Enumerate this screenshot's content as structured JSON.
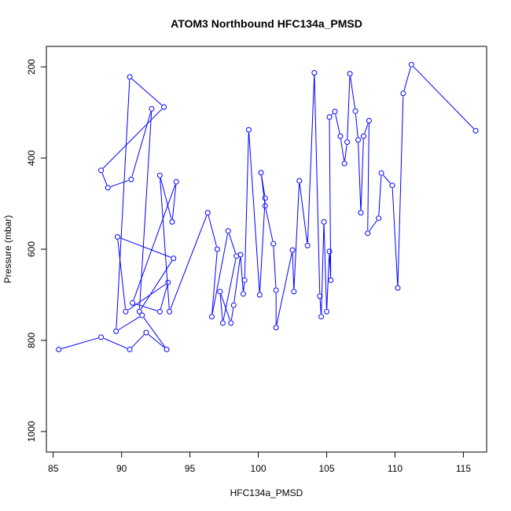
{
  "chart_data": {
    "type": "line",
    "title": "ATOM3 Northbound HFC134a_PMSD",
    "xlabel": "HFC134a_PMSD",
    "ylabel": "Pressure (mbar)",
    "xlim": [
      84.5,
      116.7
    ],
    "ylim": [
      1045,
      155
    ],
    "y_reversed": true,
    "x_ticks": [
      85,
      90,
      95,
      100,
      105,
      110,
      115
    ],
    "y_ticks": [
      200,
      400,
      600,
      800,
      1000
    ],
    "grid": false,
    "legend": "none",
    "series": [
      {
        "color": "#0000ff",
        "marker": "open-circle",
        "x": [
          85.4,
          88.5,
          90.6,
          91.8,
          93.3,
          91.5,
          89.6,
          90.6,
          93.1,
          88.5,
          89.0,
          90.7,
          92.2,
          91.3,
          93.8,
          89.7,
          90.3,
          93.4,
          92.8,
          90.8,
          94.0,
          93.7,
          92.8,
          93.5,
          96.3,
          97.0,
          96.6,
          97.8,
          98.4,
          97.4,
          97.2,
          98.0,
          98.2,
          98.7,
          98.9,
          99.0,
          99.3,
          100.1,
          100.5,
          100.2,
          100.5,
          101.1,
          101.3,
          101.3,
          102.5,
          102.6,
          103.0,
          103.6,
          104.1,
          104.5,
          104.6,
          104.8,
          105.0,
          105.2,
          105.3,
          105.2,
          105.6,
          106.0,
          106.3,
          106.5,
          106.7,
          107.1,
          107.3,
          107.5,
          107.7,
          108.1,
          108.0,
          108.8,
          109.0,
          109.8,
          110.2,
          110.6,
          111.2,
          115.9
        ],
        "y": [
          820,
          793,
          820,
          783,
          820,
          745,
          780,
          222,
          288,
          427,
          465,
          447,
          292,
          737,
          620,
          573,
          737,
          673,
          737,
          718,
          452,
          540,
          438,
          737,
          520,
          600,
          748,
          560,
          615,
          762,
          693,
          762,
          723,
          612,
          698,
          668,
          338,
          700,
          488,
          432,
          505,
          588,
          690,
          772,
          602,
          693,
          450,
          592,
          213,
          703,
          748,
          540,
          737,
          605,
          668,
          310,
          298,
          352,
          412,
          365,
          215,
          297,
          360,
          520,
          352,
          318,
          565,
          532,
          433,
          460,
          685,
          258,
          195,
          340
        ]
      }
    ]
  }
}
